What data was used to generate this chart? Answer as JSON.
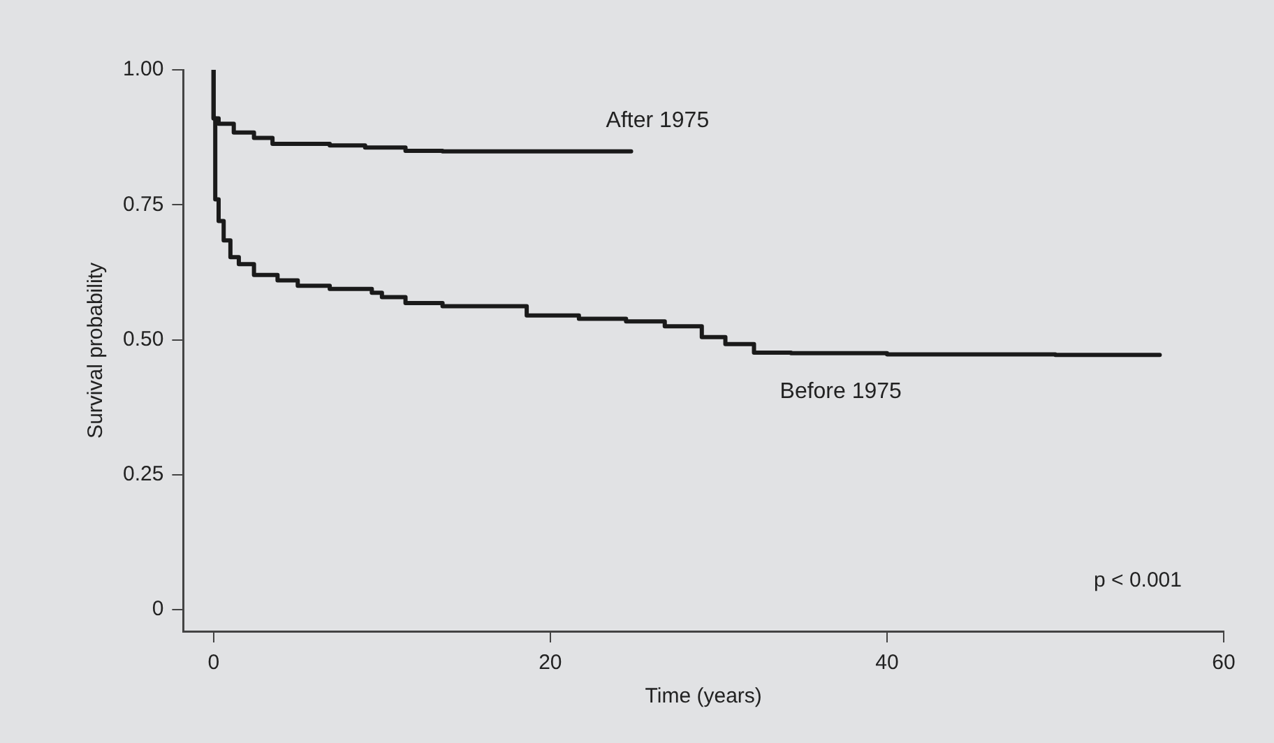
{
  "chart_data": {
    "type": "step",
    "xlabel": "Time (years)",
    "ylabel": "Survival probability",
    "xlim": [
      -1.8,
      60
    ],
    "xticks": [
      0,
      20,
      40,
      60
    ],
    "ylim": [
      -0.04,
      1
    ],
    "yticks": [
      0,
      {
        "value": 0.25,
        "label": "0.25"
      },
      {
        "value": 0.5,
        "label": "0.50"
      },
      {
        "value": 0.75,
        "label": "0.75"
      },
      {
        "value": 1,
        "label": "1.00"
      }
    ],
    "grid": false,
    "legend": false,
    "marker": "none",
    "line_style": "solid",
    "series": [
      {
        "name": "After 1975",
        "color": "#1a1a1a",
        "x": [
          0,
          0.3,
          1.2,
          2.4,
          3.5,
          6.9,
          9,
          11.4,
          13.6,
          18,
          24.8
        ],
        "values": [
          1,
          0.91,
          0.9,
          0.884,
          0.874,
          0.863,
          0.86,
          0.856,
          0.85,
          0.849,
          0.849
        ]
      },
      {
        "name": "Before 1975",
        "color": "#1a1a1a",
        "x": [
          0,
          0.1,
          0.3,
          0.6,
          1.0,
          1.5,
          2.4,
          3.8,
          5,
          6.9,
          9.4,
          10,
          11.4,
          13.6,
          18.6,
          21.7,
          24.5,
          26.8,
          29,
          30.4,
          32.1,
          34.3,
          40,
          50,
          56.2
        ],
        "values": [
          1,
          0.91,
          0.76,
          0.72,
          0.684,
          0.653,
          0.64,
          0.62,
          0.61,
          0.6,
          0.594,
          0.587,
          0.579,
          0.568,
          0.562,
          0.545,
          0.539,
          0.534,
          0.525,
          0.505,
          0.492,
          0.476,
          0.475,
          0.473,
          0.472
        ]
      }
    ],
    "annotations": [
      "p < 0.001"
    ]
  }
}
